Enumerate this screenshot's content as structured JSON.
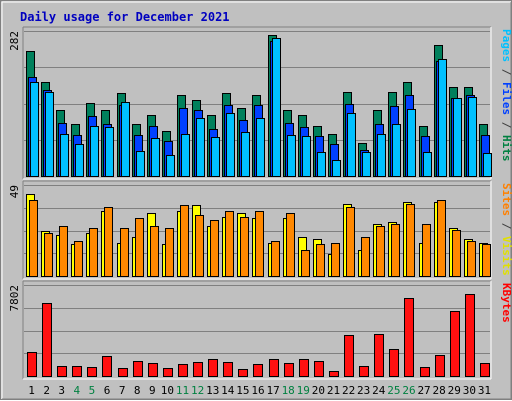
{
  "chart_data": {
    "type": "bar",
    "title": "Daily usage for December 2021",
    "categories": [
      "1",
      "2",
      "3",
      "4",
      "5",
      "6",
      "7",
      "8",
      "9",
      "10",
      "11",
      "12",
      "13",
      "14",
      "15",
      "16",
      "17",
      "18",
      "19",
      "20",
      "21",
      "22",
      "23",
      "24",
      "25",
      "26",
      "27",
      "28",
      "29",
      "30",
      "31"
    ],
    "weekend_days": [
      "4",
      "5",
      "11",
      "12",
      "18",
      "19",
      "25",
      "26"
    ],
    "panels": [
      {
        "name": "hits-files",
        "ymax_label": "282",
        "ymax": 282,
        "legend": [
          {
            "text": "Pages",
            "color": "#00c0ff"
          },
          {
            "text": "/",
            "color": "#404040"
          },
          {
            "text": "Files",
            "color": "#0040ff"
          },
          {
            "text": "/",
            "color": "#404040"
          },
          {
            "text": "Hits",
            "color": "#008040"
          }
        ],
        "series": [
          {
            "name": "Hits",
            "color": "#00805c",
            "values": [
              243,
              183,
              128,
              102,
              142,
              128,
              162,
              102,
              118,
              88,
              157,
              148,
              118,
              162,
              132,
              157,
              275,
              128,
              118,
              98,
              82,
              163,
              65,
              128,
              163,
              183,
              98,
              255,
              173,
              173,
              102
            ]
          },
          {
            "name": "Files",
            "color": "#0040ff",
            "values": [
              193,
              168,
              103,
              80,
              117,
              102,
              138,
              80,
              98,
              68,
              132,
              128,
              92,
              138,
              108,
              138,
              262,
              103,
              95,
              78,
              62,
              140,
              50,
              102,
              137,
              158,
              78,
              223,
              152,
              157,
              80
            ]
          },
          {
            "name": "Pages",
            "color": "#00c0ff",
            "values": [
              182,
              163,
              82,
              62,
              98,
              95,
              144,
              48,
              73,
              40,
              82,
              113,
              76,
              123,
              86,
              113,
              268,
              80,
              78,
              47,
              32,
              123,
              47,
              82,
              102,
              130,
              47,
              227,
              152,
              153,
              44
            ]
          }
        ]
      },
      {
        "name": "visits-sites",
        "ymax_label": "49",
        "ymax": 49,
        "legend": [
          {
            "text": "Sites",
            "color": "#ff8000"
          },
          {
            "text": "/",
            "color": "#404040"
          },
          {
            "text": "Visits",
            "color": "#e0e000"
          }
        ],
        "series": [
          {
            "name": "Visits",
            "color": "#ffff00",
            "values": [
              44,
              24,
              22,
              17,
              23,
              35,
              18,
              21,
              34,
              17,
              35,
              38,
              27,
              32,
              34,
              31,
              18,
              31,
              21,
              20,
              12,
              39,
              14,
              28,
              29,
              40,
              18,
              40,
              26,
              20,
              18
            ]
          },
          {
            "name": "Sites",
            "color": "#ff8800",
            "values": [
              41,
              23,
              27,
              19,
              26,
              37,
              26,
              31,
              27,
              26,
              38,
              33,
              30,
              35,
              32,
              35,
              19,
              34,
              14,
              17,
              18,
              37,
              21,
              27,
              28,
              39,
              28,
              41,
              25,
              19,
              17
            ]
          }
        ]
      },
      {
        "name": "kbytes",
        "ymax_label": "7802",
        "ymax": 7802,
        "legend": [
          {
            "text": "KBytes",
            "color": "#ff0000"
          }
        ],
        "series": [
          {
            "name": "KBytes",
            "color": "#ff1010",
            "values": [
              2080,
              6230,
              900,
              900,
              800,
              1690,
              680,
              1270,
              1150,
              690,
              1020,
              1160,
              1430,
              1170,
              580,
              1020,
              1470,
              1100,
              1490,
              1320,
              450,
              3530,
              850,
              3590,
              2280,
              6680,
              790,
              1770,
              5530,
              7000,
              1110
            ]
          }
        ]
      }
    ],
    "grid": true
  }
}
